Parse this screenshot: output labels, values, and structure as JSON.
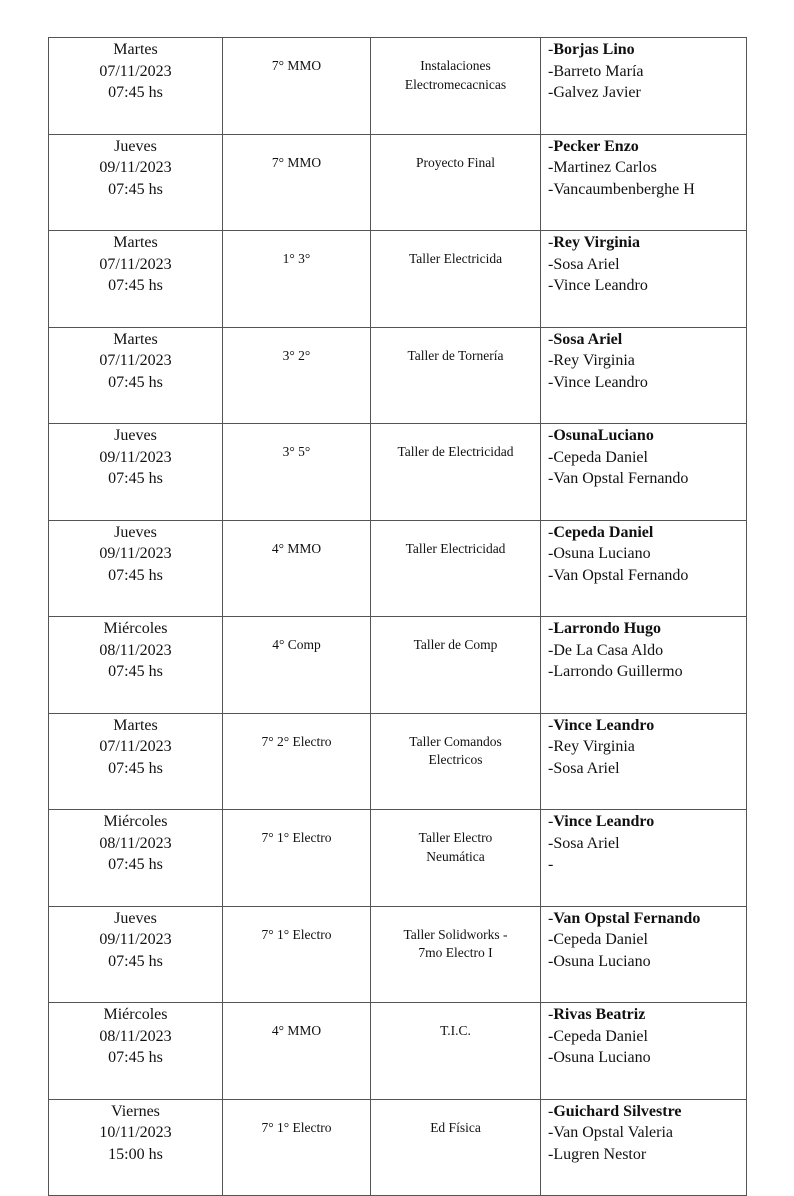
{
  "rows": [
    {
      "day": "Martes",
      "date": "07/11/2023",
      "time": "07:45 hs",
      "course": "7° MMO",
      "subject": [
        "Instalaciones",
        "Electromecacnicas"
      ],
      "names": [
        "Borjas Lino",
        "Barreto María",
        "Galvez Javier"
      ]
    },
    {
      "day": "Jueves",
      "date": "09/11/2023",
      "time": "07:45 hs",
      "course": "7° MMO",
      "subject": [
        "Proyecto Final"
      ],
      "names": [
        "Pecker Enzo",
        "Martinez Carlos",
        "Vancaumbenberghe H"
      ]
    },
    {
      "day": "Martes",
      "date": "07/11/2023",
      "time": "07:45 hs",
      "course": "1° 3°",
      "subject": [
        "Taller Electricida"
      ],
      "names": [
        "Rey Virginia",
        "Sosa Ariel",
        "Vince Leandro"
      ]
    },
    {
      "day": "Martes",
      "date": "07/11/2023",
      "time": "07:45 hs",
      "course": "3° 2°",
      "subject": [
        "Taller de Tornería"
      ],
      "names": [
        "Sosa Ariel",
        "Rey Virginia",
        "Vince Leandro"
      ]
    },
    {
      "day": "Jueves",
      "date": "09/11/2023",
      "time": "07:45 hs",
      "course": "3° 5°",
      "subject": [
        "Taller de Electricidad"
      ],
      "names": [
        "OsunaLuciano",
        "Cepeda Daniel",
        "Van Opstal Fernando"
      ]
    },
    {
      "day": "Jueves",
      "date": "09/11/2023",
      "time": "07:45 hs",
      "course": "4° MMO",
      "subject": [
        "Taller Electricidad"
      ],
      "names": [
        "Cepeda Daniel",
        "Osuna Luciano",
        "Van Opstal Fernando"
      ]
    },
    {
      "day": "Miércoles",
      "date": "08/11/2023",
      "time": "07:45 hs",
      "course": "4° Comp",
      "subject": [
        "Taller de Comp"
      ],
      "names": [
        "Larrondo Hugo",
        "De La Casa Aldo",
        "Larrondo Guillermo"
      ]
    },
    {
      "day": "Martes",
      "date": "07/11/2023",
      "time": "07:45 hs",
      "course": "7° 2° Electro",
      "subject": [
        "Taller Comandos",
        "Electricos"
      ],
      "names": [
        "Vince Leandro",
        "Rey Virginia",
        "Sosa Ariel"
      ]
    },
    {
      "day": "Miércoles",
      "date": "08/11/2023",
      "time": "07:45 hs",
      "course": "7° 1° Electro",
      "subject": [
        "Taller Electro",
        "Neumática"
      ],
      "names": [
        "Vince Leandro",
        "Sosa Ariel",
        ""
      ]
    },
    {
      "day": "Jueves",
      "date": "09/11/2023",
      "time": "07:45 hs",
      "course": "7° 1° Electro",
      "subject": [
        "Taller Solidworks -",
        "7mo Electro I"
      ],
      "names": [
        "Van Opstal Fernando",
        "Cepeda Daniel",
        "Osuna Luciano"
      ]
    },
    {
      "day": "Miércoles",
      "date": "08/11/2023",
      "time": "07:45 hs",
      "course": "4° MMO",
      "subject": [
        "T.I.C."
      ],
      "names": [
        "Rivas Beatriz",
        "Cepeda Daniel",
        "Osuna Luciano"
      ]
    },
    {
      "day": "Viernes",
      "date": "10/11/2023",
      "time": "15:00 hs",
      "course": "7° 1° Electro",
      "subject": [
        "Ed Física"
      ],
      "names": [
        "Guichard Silvestre",
        "Van Opstal Valeria",
        "Lugren Nestor"
      ]
    }
  ],
  "dash": "-"
}
